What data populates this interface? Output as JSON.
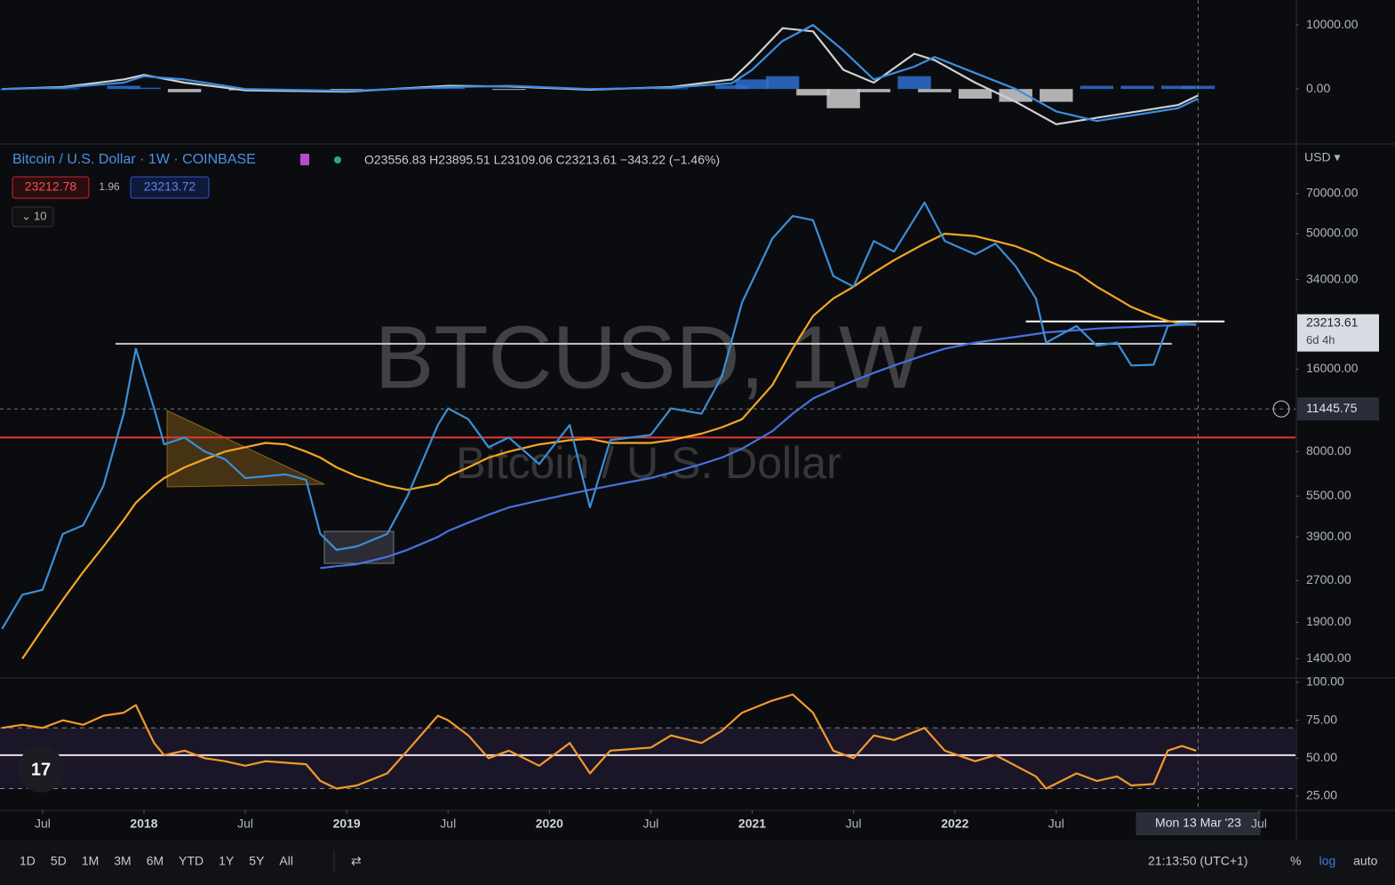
{
  "chart_data": [
    {
      "type": "line",
      "xlim": [
        2017.29,
        2023.68
      ],
      "ylim": [
        -8300,
        13900
      ],
      "yticks": [
        {
          "value": 0,
          "label": "0.00"
        },
        {
          "value": 10000,
          "label": "10000.00"
        }
      ],
      "grid": false,
      "x": [
        2017.3,
        2017.6,
        2017.9,
        2018.0,
        2018.2,
        2018.5,
        2019.0,
        2019.5,
        2019.8,
        2020.2,
        2020.6,
        2020.9,
        2021.0,
        2021.15,
        2021.3,
        2021.45,
        2021.6,
        2021.8,
        2021.9,
        2022.1,
        2022.3,
        2022.5,
        2022.7,
        2022.9,
        2023.1,
        2023.2
      ],
      "series": [
        {
          "style": "histogram",
          "color": "#2f6fd0",
          "values": [
            0,
            100,
            500,
            200,
            -500,
            -200,
            -100,
            200,
            -100,
            -100,
            100,
            600,
            1500,
            2000,
            -1000,
            -3000,
            -500,
            2000,
            -500,
            -1500,
            -2000,
            -2000,
            500,
            500,
            500,
            500
          ]
        },
        {
          "style": "line",
          "color": "#d0d0d0",
          "values": [
            0,
            300,
            1500,
            2200,
            1000,
            -200,
            -400,
            500,
            400,
            -100,
            300,
            1500,
            4500,
            9500,
            9000,
            3000,
            1000,
            5500,
            4500,
            1000,
            -2000,
            -5500,
            -4500,
            -3500,
            -2500,
            -1000
          ]
        },
        {
          "style": "line",
          "color": "#3b8de0",
          "values": [
            0,
            200,
            1000,
            2000,
            1500,
            0,
            -300,
            300,
            500,
            0,
            200,
            900,
            3000,
            7500,
            10000,
            6000,
            1500,
            3500,
            5000,
            2500,
            0,
            -3500,
            -5000,
            -4000,
            -3000,
            -1500
          ]
        }
      ]
    },
    {
      "type": "line",
      "title": "Bitcoin / U.S. Dollar · 1W · COINBASE",
      "ohlc": "O23556.83 H23895.51 L23109.06 C23213.61 −343.22 (−1.46%)",
      "bid": 23212.78,
      "spread": 1.96,
      "ask": 23213.72,
      "indicators_count": 10,
      "currency": "USD ▾",
      "watermark": "BTCUSD, 1W",
      "watermark_subtitle": "Bitcoin / U.S. Dollar",
      "log_scale": true,
      "grid": false,
      "xlim": [
        2017.29,
        2023.68
      ],
      "ylim": [
        1200,
        104000
      ],
      "yticks": [
        {
          "value": 1400,
          "label": "1400.00"
        },
        {
          "value": 1900,
          "label": "1900.00"
        },
        {
          "value": 2700,
          "label": "2700.00"
        },
        {
          "value": 3900,
          "label": "3900.00"
        },
        {
          "value": 5500,
          "label": "5500.00"
        },
        {
          "value": 8000,
          "label": "8000.00"
        },
        {
          "value": 16000,
          "label": "16000.00"
        },
        {
          "value": 34000,
          "label": "34000.00"
        },
        {
          "value": 50000,
          "label": "50000.00"
        },
        {
          "value": 70000,
          "label": "70000.00"
        }
      ],
      "levels": [
        {
          "value": 9000,
          "color": "#e53935"
        },
        {
          "value": 19800,
          "color": "#c8c8c8",
          "from": 2017.86,
          "to": 2023.07
        },
        {
          "value": 23900,
          "color": "#ffffff",
          "from": 2022.35,
          "to": 2023.33
        }
      ],
      "last_price": 23213.61,
      "countdown": "6d 4h",
      "crosshair": {
        "x": 2023.2,
        "x_label": "Mon 13 Mar '23",
        "y": 11445.75
      },
      "x": [
        2017.3,
        2017.4,
        2017.5,
        2017.6,
        2017.7,
        2017.8,
        2017.9,
        2017.96,
        2018.05,
        2018.1,
        2018.2,
        2018.3,
        2018.4,
        2018.5,
        2018.6,
        2018.7,
        2018.8,
        2018.87,
        2018.95,
        2019.05,
        2019.2,
        2019.3,
        2019.45,
        2019.5,
        2019.6,
        2019.7,
        2019.8,
        2019.95,
        2020.1,
        2020.2,
        2020.3,
        2020.5,
        2020.6,
        2020.75,
        2020.85,
        2020.95,
        2021.1,
        2021.2,
        2021.3,
        2021.4,
        2021.5,
        2021.6,
        2021.7,
        2021.85,
        2021.95,
        2022.1,
        2022.2,
        2022.3,
        2022.4,
        2022.45,
        2022.6,
        2022.7,
        2022.8,
        2022.87,
        2022.98,
        2023.05,
        2023.12,
        2023.19
      ],
      "series": [
        {
          "style": "line",
          "color": "#f5a623",
          "values": [
            null,
            1400,
            1800,
            2300,
            2900,
            3600,
            4500,
            5200,
            6000,
            6400,
            7000,
            7500,
            8000,
            8300,
            8600,
            8500,
            8000,
            7600,
            7000,
            6500,
            6000,
            5800,
            6100,
            6500,
            7000,
            7600,
            8000,
            8500,
            8800,
            8900,
            8600,
            8600,
            8800,
            9300,
            9800,
            10500,
            14000,
            19000,
            25000,
            29000,
            32000,
            36000,
            40000,
            46000,
            50000,
            49000,
            47000,
            45000,
            42000,
            40000,
            36000,
            32000,
            29000,
            27000,
            25000,
            24000,
            23500,
            23300
          ]
        },
        {
          "style": "line",
          "color": "#4a6fe0",
          "values": [
            null,
            null,
            null,
            null,
            null,
            null,
            null,
            null,
            null,
            null,
            null,
            null,
            null,
            null,
            null,
            null,
            null,
            3000,
            3050,
            3100,
            3300,
            3500,
            3900,
            4100,
            4400,
            4700,
            5000,
            5300,
            5600,
            5800,
            6000,
            6400,
            6700,
            7200,
            7600,
            8200,
            9500,
            11000,
            12500,
            13500,
            14500,
            15500,
            16500,
            18000,
            19000,
            20000,
            20500,
            21000,
            21500,
            21800,
            22200,
            22500,
            22700,
            22800,
            23000,
            23100,
            23200,
            23300
          ]
        },
        {
          "style": "line",
          "color": "#3a8fd8",
          "values": [
            1800,
            2400,
            2500,
            4000,
            4300,
            6000,
            11000,
            19000,
            11500,
            8500,
            9000,
            8000,
            7500,
            6400,
            6500,
            6600,
            6300,
            4000,
            3500,
            3600,
            4000,
            5500,
            10000,
            11500,
            10500,
            8300,
            9000,
            7200,
            10000,
            5000,
            8800,
            9200,
            11500,
            11000,
            15000,
            28000,
            48000,
            58000,
            56000,
            35000,
            32000,
            47000,
            43000,
            65000,
            47000,
            42000,
            46000,
            38000,
            29000,
            20000,
            23000,
            19500,
            20000,
            16500,
            16600,
            23000,
            23500,
            23213.61
          ]
        }
      ]
    },
    {
      "type": "line",
      "grid": false,
      "xlim": [
        2017.29,
        2023.68
      ],
      "ylim": [
        16.8,
        102.3
      ],
      "yticks": [
        {
          "value": 25,
          "label": "25.00"
        },
        {
          "value": 50,
          "label": "50.00"
        },
        {
          "value": 75,
          "label": "75.00"
        },
        {
          "value": 100,
          "label": "100.00"
        }
      ],
      "bands": [
        30,
        70
      ],
      "levels": [
        {
          "value": 52,
          "color": "#e8e0f0"
        }
      ],
      "xticks": [
        {
          "value": 2017.5,
          "label": "Jul"
        },
        2018,
        {
          "value": 2018.5,
          "label": "Jul"
        },
        2019,
        {
          "value": 2019.5,
          "label": "Jul"
        },
        2020,
        {
          "value": 2020.5,
          "label": "Jul"
        },
        2021,
        {
          "value": 2021.5,
          "label": "Jul"
        },
        2022,
        {
          "value": 2022.5,
          "label": "Jul"
        },
        {
          "value": 2023.5,
          "label": "Jul"
        }
      ],
      "x": [
        2017.3,
        2017.4,
        2017.5,
        2017.6,
        2017.7,
        2017.8,
        2017.9,
        2017.96,
        2018.05,
        2018.1,
        2018.2,
        2018.3,
        2018.4,
        2018.5,
        2018.6,
        2018.7,
        2018.8,
        2018.87,
        2018.95,
        2019.05,
        2019.2,
        2019.3,
        2019.45,
        2019.5,
        2019.6,
        2019.7,
        2019.8,
        2019.95,
        2020.1,
        2020.2,
        2020.3,
        2020.5,
        2020.6,
        2020.75,
        2020.85,
        2020.95,
        2021.1,
        2021.2,
        2021.3,
        2021.4,
        2021.5,
        2021.6,
        2021.7,
        2021.85,
        2021.95,
        2022.1,
        2022.2,
        2022.3,
        2022.4,
        2022.45,
        2022.6,
        2022.7,
        2022.8,
        2022.87,
        2022.98,
        2023.05,
        2023.12,
        2023.19
      ],
      "series": [
        {
          "style": "line",
          "color": "#f39a2c",
          "values": [
            70,
            72,
            70,
            75,
            72,
            78,
            80,
            85,
            60,
            52,
            55,
            50,
            48,
            45,
            48,
            47,
            46,
            35,
            30,
            32,
            40,
            55,
            78,
            75,
            65,
            50,
            55,
            45,
            60,
            40,
            55,
            57,
            65,
            60,
            68,
            80,
            88,
            92,
            80,
            55,
            50,
            65,
            62,
            70,
            55,
            48,
            52,
            45,
            38,
            30,
            40,
            35,
            38,
            32,
            33,
            55,
            58,
            55
          ]
        }
      ]
    }
  ],
  "toolbar": {
    "timeframes": [
      "1D",
      "5D",
      "1M",
      "3M",
      "6M",
      "YTD",
      "1Y",
      "5Y",
      "All"
    ],
    "clock": "21:13:50 (UTC+1)",
    "options": [
      "%",
      "log",
      "auto"
    ]
  }
}
